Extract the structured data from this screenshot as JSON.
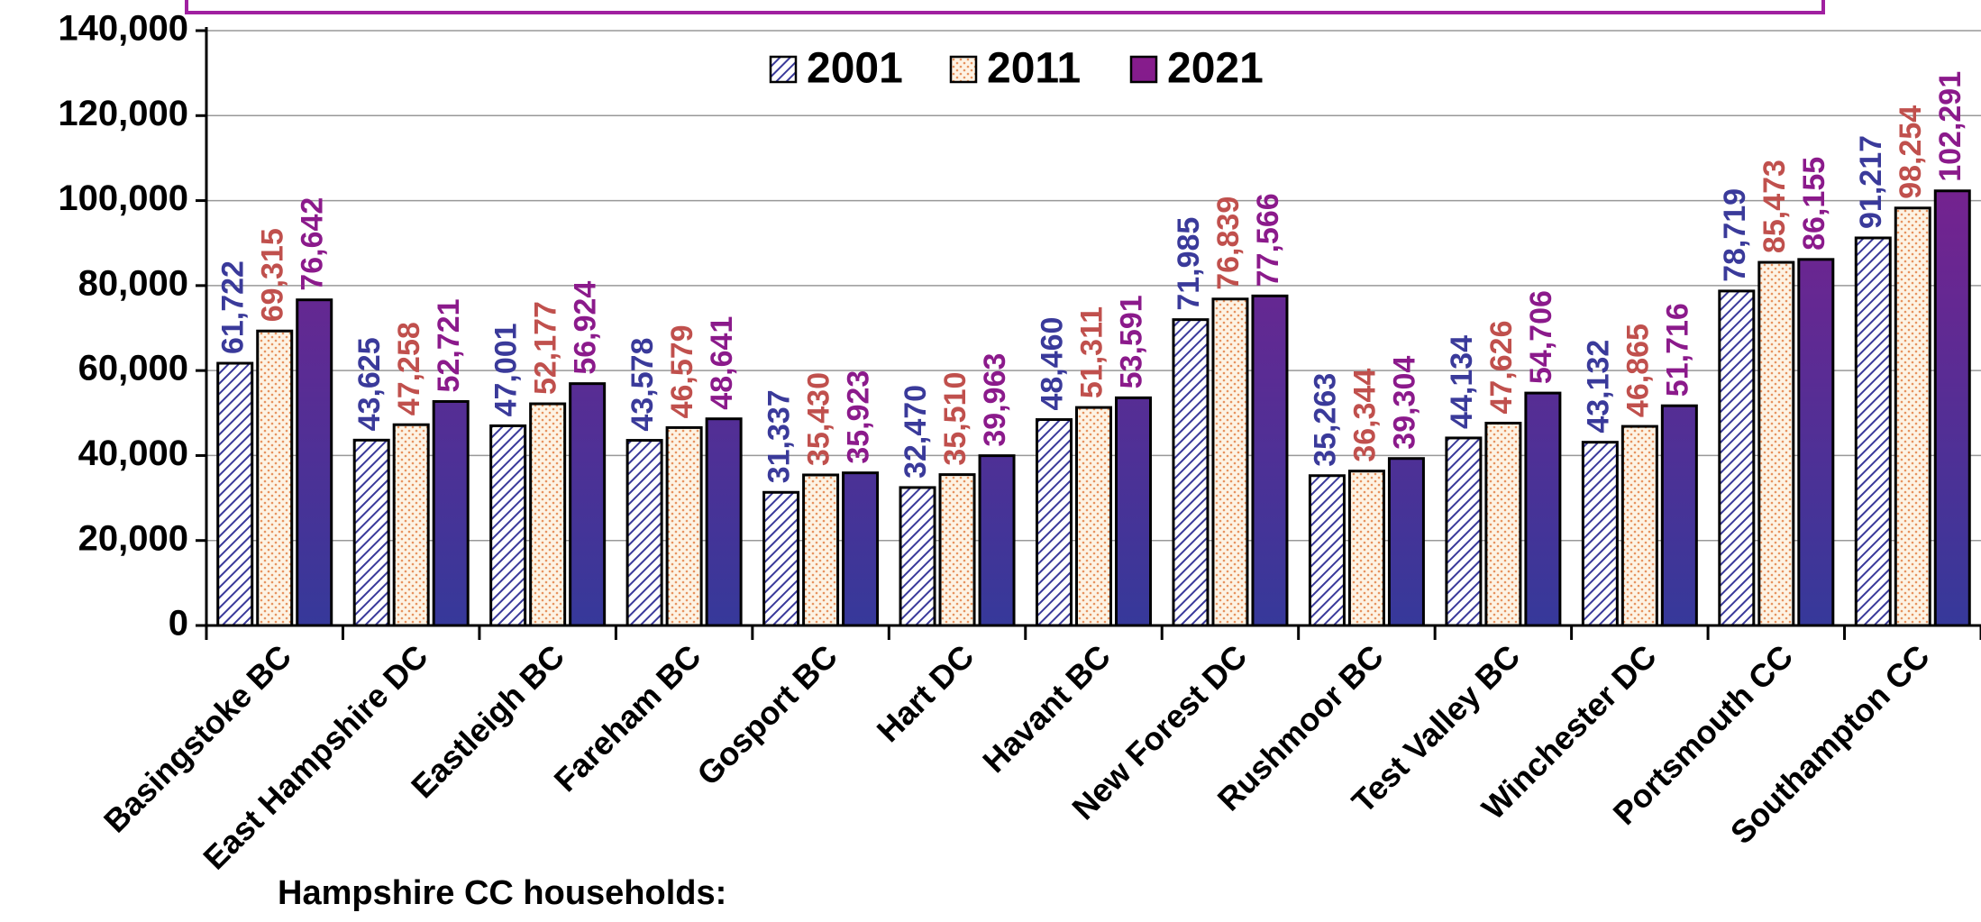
{
  "chart_data": {
    "type": "bar",
    "annotation": "Hampshire CC households:",
    "categories": [
      "Basingstoke BC",
      "East Hampshire DC",
      "Eastleigh BC",
      "Fareham BC",
      "Gosport BC",
      "Hart DC",
      "Havant BC",
      "New Forest DC",
      "Rushmoor BC",
      "Test Valley BC",
      "Winchester DC",
      "Portsmouth CC",
      "Southampton CC"
    ],
    "series": [
      {
        "name": "2001",
        "color": "#3a3a9a",
        "pattern": "hatch",
        "values": [
          61722,
          43625,
          47001,
          43578,
          31337,
          32470,
          48460,
          71985,
          35263,
          44134,
          43132,
          78719,
          91217
        ],
        "value_labels": [
          "61,722",
          "43,625",
          "47,001",
          "43,578",
          "31,337",
          "32,470",
          "48,460",
          "71,985",
          "35,263",
          "44,134",
          "43,132",
          "78,719",
          "91,217"
        ]
      },
      {
        "name": "2011",
        "color": "#c0504d",
        "pattern": "dots",
        "values": [
          69315,
          47258,
          52177,
          46579,
          35430,
          35510,
          51311,
          76839,
          36344,
          47626,
          46865,
          85473,
          98254
        ],
        "value_labels": [
          "69,315",
          "47,258",
          "52,177",
          "46,579",
          "35,430",
          "35,510",
          "51,311",
          "76,839",
          "36,344",
          "47,626",
          "46,865",
          "85,473",
          "98,254"
        ]
      },
      {
        "name": "2021",
        "color": "#8b1a8b",
        "pattern": "gradient",
        "values": [
          76642,
          52721,
          56924,
          48641,
          35923,
          39963,
          53591,
          77566,
          39304,
          54706,
          51716,
          86155,
          102291
        ],
        "value_labels": [
          "76,642",
          "52,721",
          "56,924",
          "48,641",
          "35,923",
          "39,963",
          "53,591",
          "77,566",
          "39,304",
          "54,706",
          "51,716",
          "86,155",
          "102,291"
        ]
      }
    ],
    "ylim": [
      0,
      140000
    ],
    "yticks": [
      {
        "value": 0,
        "label": "0"
      },
      {
        "value": 20000,
        "label": "20,000"
      },
      {
        "value": 40000,
        "label": "40,000"
      },
      {
        "value": 60000,
        "label": "60,000"
      },
      {
        "value": 80000,
        "label": "80,000"
      },
      {
        "value": 100000,
        "label": "100,000"
      },
      {
        "value": 120000,
        "label": "120,000"
      },
      {
        "value": 140000,
        "label": "140,000"
      }
    ],
    "grid": true,
    "legend": "top"
  }
}
